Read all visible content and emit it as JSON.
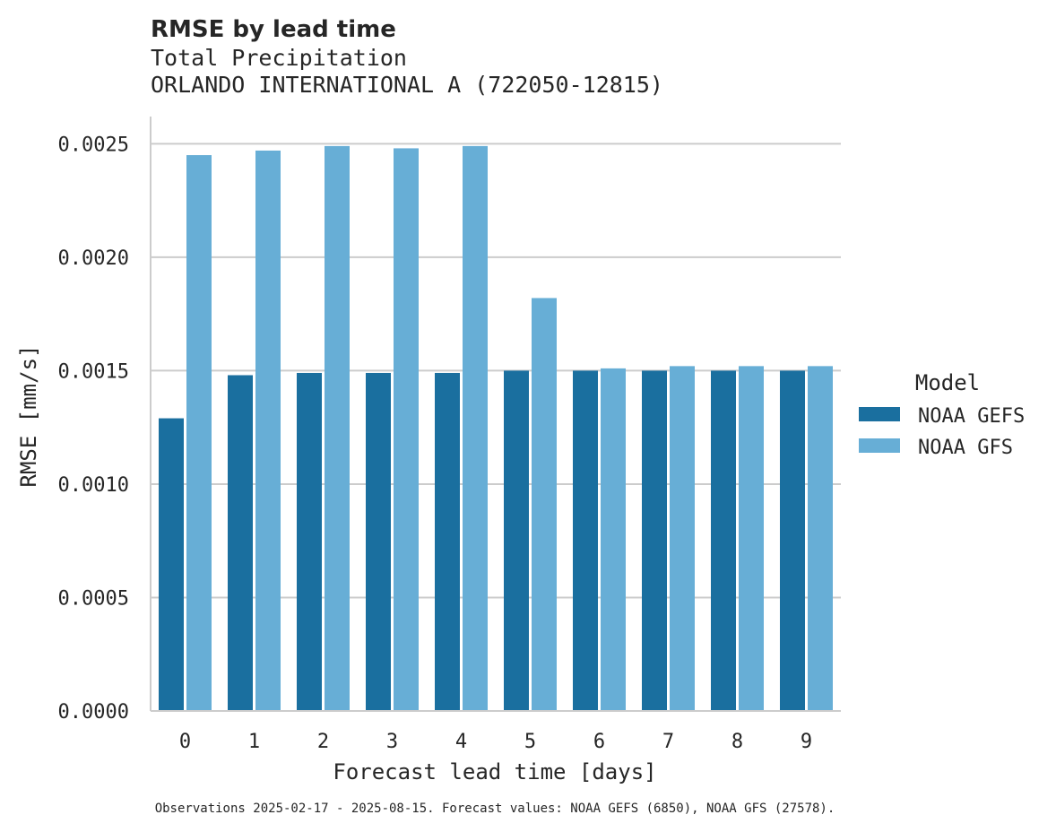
{
  "chart_data": {
    "type": "bar",
    "title": "RMSE by lead time",
    "subtitle_lines": [
      "Total Precipitation",
      "ORLANDO INTERNATIONAL A (722050-12815)"
    ],
    "xlabel": "Forecast lead time [days]",
    "ylabel": "RMSE [mm/s]",
    "categories": [
      "0",
      "1",
      "2",
      "3",
      "4",
      "5",
      "6",
      "7",
      "8",
      "9"
    ],
    "series": [
      {
        "name": "NOAA GEFS",
        "color": "#1a6f9f",
        "values": [
          0.00129,
          0.00148,
          0.00149,
          0.00149,
          0.00149,
          0.0015,
          0.0015,
          0.0015,
          0.0015,
          0.0015
        ]
      },
      {
        "name": "NOAA GFS",
        "color": "#67aed6",
        "values": [
          0.00245,
          0.00247,
          0.00249,
          0.00248,
          0.00249,
          0.00182,
          0.00151,
          0.00152,
          0.00152,
          0.00152
        ]
      }
    ],
    "ylim": [
      0,
      0.00262
    ],
    "yticks": [
      "0.0000",
      "0.0005",
      "0.0010",
      "0.0015",
      "0.0020",
      "0.0025"
    ],
    "grid": "horizontal",
    "legend": {
      "title": "Model",
      "placement": "right"
    },
    "footnote": "Observations 2025-02-17 - 2025-08-15. Forecast values: NOAA GEFS (6850), NOAA GFS (27578)."
  }
}
